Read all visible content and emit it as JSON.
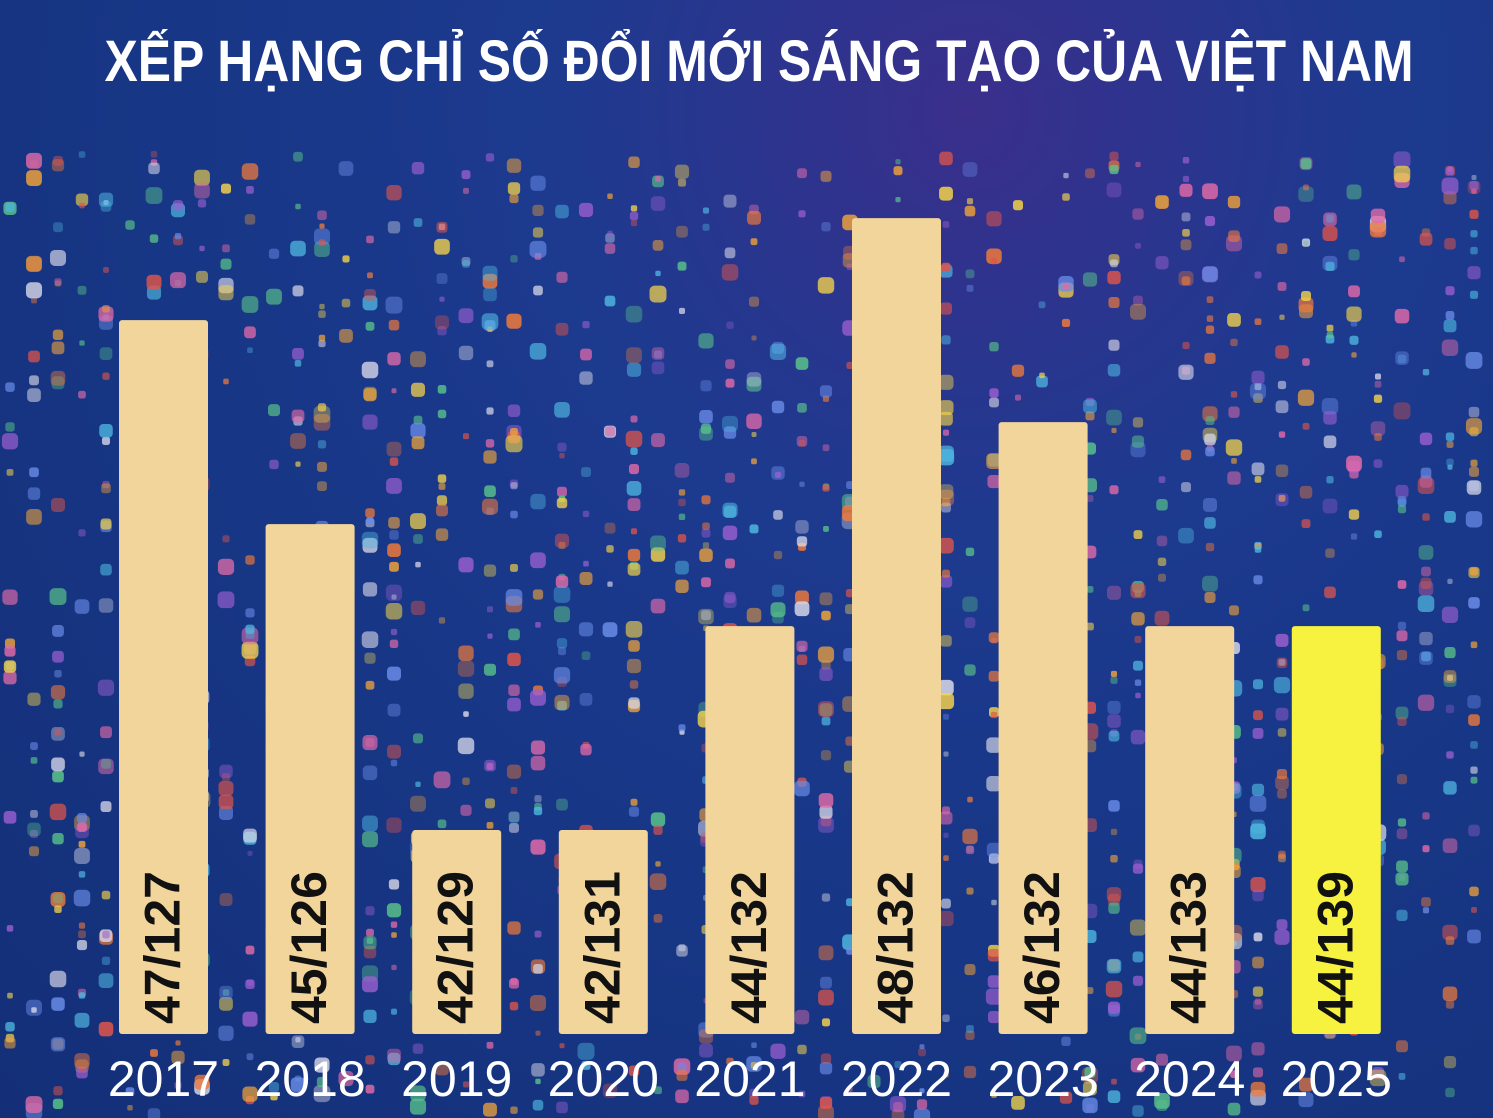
{
  "title": "XẾP HẠNG CHỈ SỐ ĐỔI MỚI SÁNG TẠO CỦA VIỆT NAM",
  "colors": {
    "bar": "#f2d59b",
    "highlight_bar": "#f7f23f",
    "background": "#173685"
  },
  "chart_data": {
    "type": "bar",
    "categories": [
      "2017",
      "2018",
      "2019",
      "2020",
      "2021",
      "2022",
      "2023",
      "2024",
      "2025"
    ],
    "values": [
      47,
      45,
      42,
      42,
      44,
      48,
      46,
      44,
      44
    ],
    "totals": [
      127,
      126,
      129,
      131,
      132,
      132,
      132,
      133,
      139
    ],
    "labels": [
      "47/127",
      "45/126",
      "42/129",
      "42/131",
      "44/132",
      "48/132",
      "46/132",
      "44/133",
      "44/139"
    ],
    "highlight": "2025",
    "title": "XẾP HẠNG CHỈ SỐ ĐỔI MỚI SÁNG TẠO CỦA VIỆT NAM",
    "xlabel": "",
    "ylabel": "",
    "ylim": [
      40,
      48.6
    ],
    "grid": false
  }
}
